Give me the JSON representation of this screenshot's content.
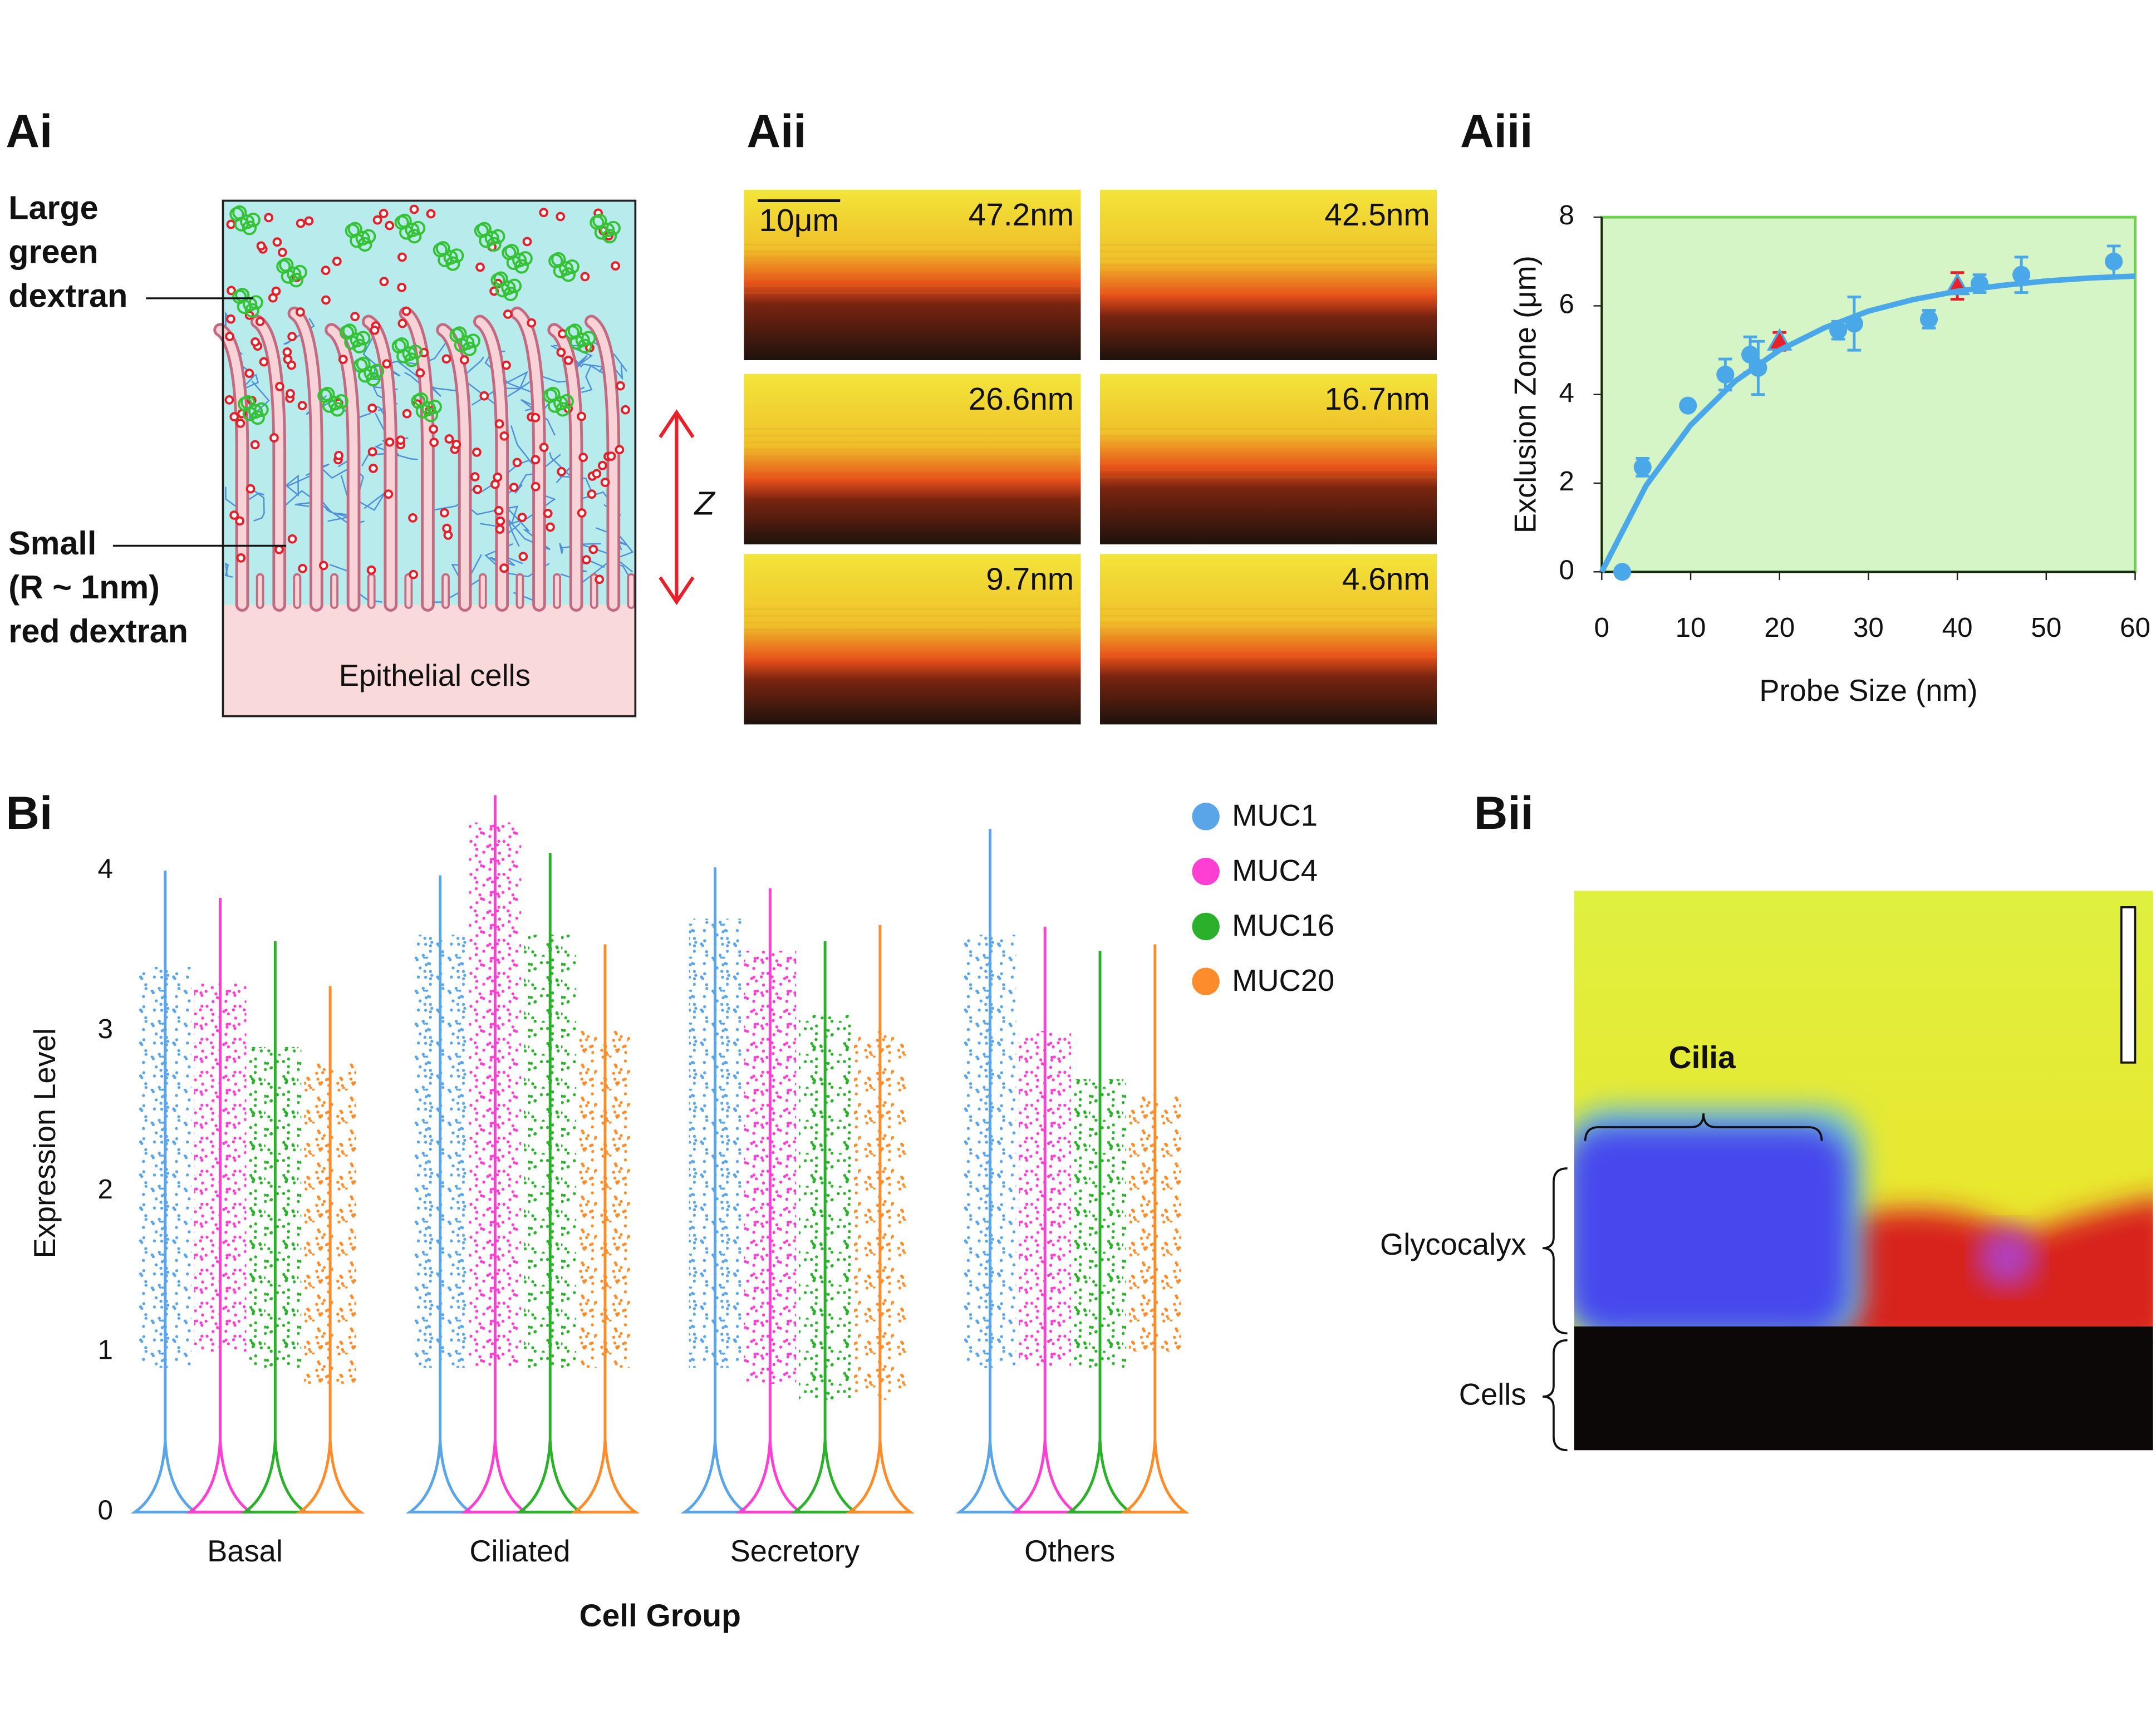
{
  "panel_labels": [
    "Ai",
    "Aii",
    "Aiii",
    "Bi",
    "Bii"
  ],
  "diagram": {
    "large_label": [
      "Large",
      "green",
      "dextran"
    ],
    "small_label": [
      "Small",
      "(R ~ 1nm)",
      "red dextran"
    ],
    "z_label": "Z",
    "cells_label": "Epithelial cells"
  },
  "images": {
    "scale_bar": "10μm",
    "probe_labels": [
      "47.2nm",
      "42.5nm",
      "26.6nm",
      "16.7nm",
      "9.7nm",
      "4.6nm"
    ]
  },
  "image_Bii": {
    "cilia": "Cilia",
    "glycocalyx": "Glycocalyx",
    "cells": "Cells"
  },
  "chart_data": [
    {
      "type": "scatter",
      "xlabel": "Probe Size (nm)",
      "ylabel": "Exclusion Zone (μm)",
      "xlim": [
        0,
        60
      ],
      "ylim": [
        0,
        8
      ],
      "xticks": [
        0,
        10,
        20,
        30,
        40,
        50,
        60
      ],
      "yticks": [
        0,
        2,
        4,
        6,
        8
      ],
      "background": "#d5f5c6",
      "frame_color": "#6fd24e",
      "series": [
        {
          "marker": "circle",
          "color": "#4aa8e8",
          "x": [
            2.3,
            4.6,
            9.7,
            13.9,
            16.7,
            17.6,
            26.6,
            28.4,
            36.8,
            42.5,
            47.2,
            57.6
          ],
          "values": [
            0,
            2.36,
            3.75,
            4.45,
            4.9,
            4.6,
            5.45,
            5.6,
            5.7,
            6.5,
            6.7,
            7.0
          ],
          "errors": [
            null,
            0.2,
            0.1,
            0.35,
            0.4,
            0.6,
            0.2,
            0.6,
            0.2,
            0.2,
            0.4,
            0.35
          ]
        },
        {
          "marker": "triangle",
          "color": "#e8202a",
          "x": [
            20,
            40
          ],
          "values": [
            5.2,
            6.45
          ],
          "errors": [
            0.2,
            0.3
          ]
        },
        {
          "marker": "line",
          "color": "#4aa8e8",
          "x": [
            0,
            5,
            10,
            15,
            20,
            25,
            30,
            35,
            40,
            45,
            50,
            55,
            60
          ],
          "values": [
            0,
            1.95,
            3.31,
            4.3,
            5.0,
            5.5,
            5.88,
            6.14,
            6.33,
            6.46,
            6.56,
            6.63,
            6.67
          ]
        }
      ]
    },
    {
      "type": "violin",
      "xlabel": "Cell Group",
      "ylabel": "Expression Level",
      "categories": [
        "Basal",
        "Ciliated",
        "Secretory",
        "Others"
      ],
      "ylim": [
        0,
        4.5
      ],
      "yticks": [
        0,
        1,
        2,
        3,
        4
      ],
      "series": [
        {
          "name": "MUC1",
          "color": "#5aa5e8",
          "values": [
            4.0,
            3.97,
            4.02,
            4.26
          ],
          "cloud_low": [
            0.9,
            0.9,
            0.9,
            0.9
          ],
          "cloud_high": [
            3.4,
            3.6,
            3.7,
            3.6
          ]
        },
        {
          "name": "MUC4",
          "color": "#ff3fd2",
          "values": [
            3.83,
            4.47,
            3.89,
            3.65
          ],
          "cloud_low": [
            1.0,
            0.9,
            0.8,
            0.9
          ],
          "cloud_high": [
            3.3,
            4.3,
            3.5,
            3.0
          ]
        },
        {
          "name": "MUC16",
          "color": "#2ab02a",
          "values": [
            3.56,
            4.11,
            3.56,
            3.5
          ],
          "cloud_low": [
            0.9,
            0.9,
            0.7,
            0.9
          ],
          "cloud_high": [
            2.9,
            3.6,
            3.1,
            2.7
          ]
        },
        {
          "name": "MUC20",
          "color": "#ff8c2a",
          "values": [
            3.28,
            3.54,
            3.66,
            3.54
          ],
          "cloud_low": [
            0.8,
            0.9,
            0.7,
            1.0
          ],
          "cloud_high": [
            2.8,
            3.0,
            3.0,
            2.6
          ]
        }
      ]
    }
  ]
}
